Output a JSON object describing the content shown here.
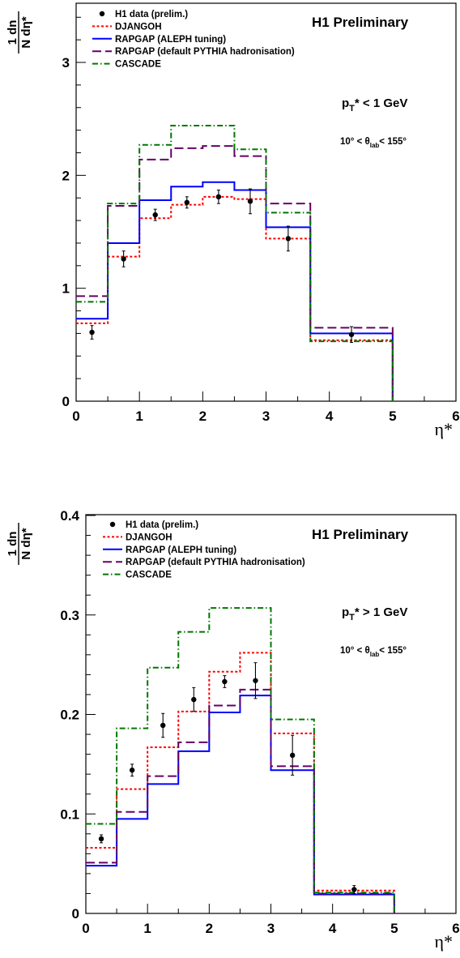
{
  "chart_data": [
    {
      "type": "line",
      "xlabel": "η*",
      "ylabel": {
        "numerator": "1 dn",
        "denominator": "N dη*"
      },
      "xlim": [
        0,
        6
      ],
      "ylim": [
        0,
        3.5
      ],
      "xticks": [
        "0",
        "1",
        "2",
        "3",
        "4",
        "5",
        "6"
      ],
      "yticks": [
        {
          "v": 0,
          "label": "0"
        },
        {
          "v": 1,
          "label": "1"
        },
        {
          "v": 2,
          "label": "2"
        },
        {
          "v": 3,
          "label": "3"
        }
      ],
      "bin_edges": [
        0,
        0.5,
        1.0,
        1.5,
        2.0,
        2.5,
        3.0,
        3.7,
        5.0
      ],
      "experiment_label": "H1 Preliminary",
      "cut_label": {
        "main": "p",
        "sub": "T",
        "rest": "* < 1 GeV"
      },
      "angle_label": {
        "pre": "10° < θ",
        "sub": "lab",
        "post": "< 155°"
      },
      "data": {
        "name": "H1 data (prelim.)",
        "x": [
          0.25,
          0.75,
          1.25,
          1.75,
          2.25,
          2.75,
          3.35,
          4.35
        ],
        "y": [
          0.61,
          1.26,
          1.65,
          1.76,
          1.81,
          1.77,
          1.44,
          0.59
        ],
        "err": [
          0.06,
          0.07,
          0.05,
          0.05,
          0.06,
          0.11,
          0.11,
          0.07
        ]
      },
      "series": [
        {
          "name": "DJANGOH",
          "color": "#ff0000",
          "dash": "3,2.5",
          "values": [
            0.69,
            1.28,
            1.62,
            1.74,
            1.81,
            1.79,
            1.44,
            0.54
          ]
        },
        {
          "name": "RAPGAP (ALEPH tuning)",
          "color": "#0000ff",
          "dash": "",
          "values": [
            0.73,
            1.4,
            1.78,
            1.9,
            1.94,
            1.87,
            1.54,
            0.6
          ]
        },
        {
          "name": "RAPGAP (default PYTHIA hadronisation)",
          "color": "#660066",
          "dash": "11,5",
          "values": [
            0.93,
            1.73,
            2.14,
            2.24,
            2.26,
            2.17,
            1.75,
            0.65
          ]
        },
        {
          "name": "CASCADE",
          "color": "#007700",
          "dash": "7,3,1.5,3",
          "values": [
            0.88,
            1.75,
            2.27,
            2.44,
            2.44,
            2.23,
            1.67,
            0.53
          ]
        }
      ]
    },
    {
      "type": "line",
      "xlabel": "η*",
      "ylabel": {
        "numerator": "1 dn",
        "denominator": "N dη*"
      },
      "xlim": [
        0,
        6
      ],
      "ylim": [
        0,
        0.4
      ],
      "xticks": [
        "0",
        "1",
        "2",
        "3",
        "4",
        "5",
        "6"
      ],
      "yticks": [
        {
          "v": 0,
          "label": "0"
        },
        {
          "v": 0.1,
          "label": "0.1"
        },
        {
          "v": 0.2,
          "label": "0.2"
        },
        {
          "v": 0.3,
          "label": "0.3"
        },
        {
          "v": 0.4,
          "label": "0.4"
        }
      ],
      "bin_edges": [
        0,
        0.5,
        1.0,
        1.5,
        2.0,
        2.5,
        3.0,
        3.7,
        5.0
      ],
      "experiment_label": "H1 Preliminary",
      "cut_label": {
        "main": "p",
        "sub": "T",
        "rest": "* > 1 GeV"
      },
      "angle_label": {
        "pre": "10° < θ",
        "sub": "lab",
        "post": "< 155°"
      },
      "data": {
        "name": "H1 data (prelim.)",
        "x": [
          0.25,
          0.75,
          1.25,
          1.75,
          2.25,
          2.75,
          3.35,
          4.35
        ],
        "y": [
          0.075,
          0.144,
          0.189,
          0.215,
          0.233,
          0.234,
          0.159,
          0.024
        ],
        "err": [
          0.004,
          0.006,
          0.012,
          0.012,
          0.006,
          0.018,
          0.02,
          0.004
        ]
      },
      "series": [
        {
          "name": "DJANGOH",
          "color": "#ff0000",
          "dash": "3,2.5",
          "values": [
            0.066,
            0.125,
            0.167,
            0.203,
            0.243,
            0.262,
            0.181,
            0.023
          ]
        },
        {
          "name": "RAPGAP (ALEPH tuning)",
          "color": "#0000ff",
          "dash": "",
          "values": [
            0.048,
            0.095,
            0.13,
            0.163,
            0.202,
            0.219,
            0.144,
            0.019
          ]
        },
        {
          "name": "RAPGAP (default PYTHIA hadronisation)",
          "color": "#660066",
          "dash": "11,5",
          "values": [
            0.051,
            0.102,
            0.138,
            0.172,
            0.209,
            0.225,
            0.148,
            0.02
          ]
        },
        {
          "name": "CASCADE",
          "color": "#007700",
          "dash": "7,3,1.5,3",
          "values": [
            0.09,
            0.186,
            0.247,
            0.283,
            0.307,
            0.307,
            0.195,
            0.021
          ]
        }
      ]
    }
  ]
}
